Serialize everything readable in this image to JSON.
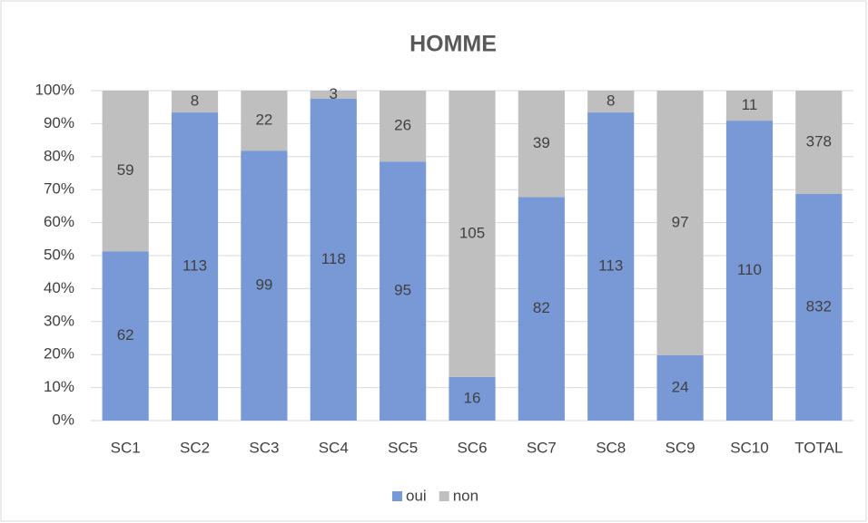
{
  "chart_data": {
    "type": "bar",
    "stacked": "percent",
    "title": "HOMME",
    "categories": [
      "SC1",
      "SC2",
      "SC3",
      "SC4",
      "SC5",
      "SC6",
      "SC7",
      "SC8",
      "SC9",
      "SC10",
      "TOTAL"
    ],
    "series": [
      {
        "name": "oui",
        "color": "#7899d6",
        "values": [
          62,
          113,
          99,
          118,
          95,
          16,
          82,
          113,
          24,
          110,
          832
        ]
      },
      {
        "name": "non",
        "color": "#bfbfbf",
        "values": [
          59,
          8,
          22,
          3,
          26,
          105,
          39,
          8,
          97,
          11,
          378
        ]
      }
    ],
    "ylim": [
      0,
      100
    ],
    "yticks": [
      {
        "value": 0,
        "label": "0%"
      },
      {
        "value": 10,
        "label": "10%"
      },
      {
        "value": 20,
        "label": "20%"
      },
      {
        "value": 30,
        "label": "30%"
      },
      {
        "value": 40,
        "label": "40%"
      },
      {
        "value": 50,
        "label": "50%"
      },
      {
        "value": 60,
        "label": "60%"
      },
      {
        "value": 70,
        "label": "70%"
      },
      {
        "value": 80,
        "label": "80%"
      },
      {
        "value": 90,
        "label": "90%"
      },
      {
        "value": 100,
        "label": "100%"
      }
    ],
    "grid": true,
    "legend": "bottom"
  }
}
